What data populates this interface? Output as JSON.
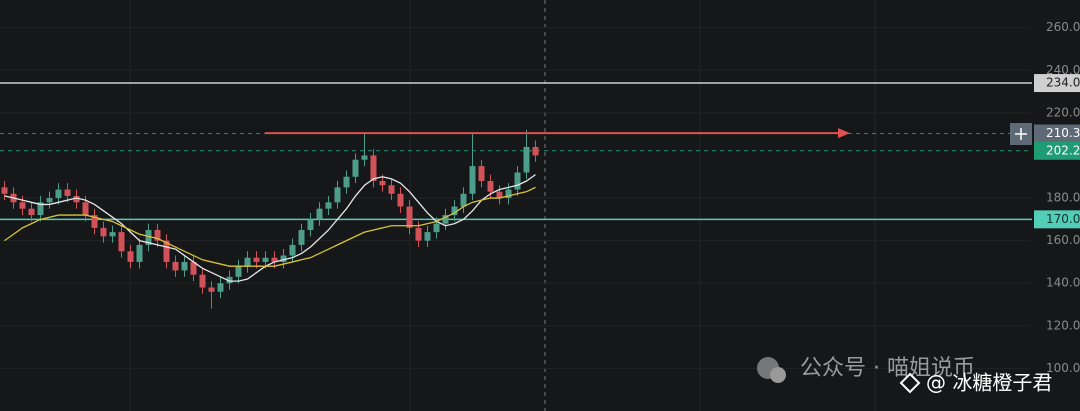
{
  "chart_data": {
    "type": "candlestick",
    "open": [
      185,
      182,
      178,
      175,
      172,
      178,
      180,
      184,
      181,
      178,
      172,
      166,
      162,
      164,
      155,
      150,
      158,
      165,
      160,
      150,
      146,
      150,
      144,
      138,
      136,
      140,
      143,
      148,
      152,
      150,
      152,
      150,
      153,
      158,
      165,
      170,
      175,
      178,
      185,
      190,
      198,
      200,
      188,
      186,
      182,
      176,
      166,
      160,
      164,
      168,
      172,
      176,
      182,
      195,
      188,
      183,
      180,
      184,
      192,
      204
    ],
    "high": [
      188,
      185,
      181,
      178,
      181,
      183,
      187,
      187,
      184,
      181,
      175,
      169,
      167,
      167,
      158,
      161,
      168,
      168,
      163,
      153,
      153,
      153,
      147,
      141,
      143,
      146,
      151,
      155,
      155,
      155,
      155,
      156,
      161,
      168,
      173,
      178,
      181,
      188,
      193,
      201,
      210,
      203,
      191,
      189,
      185,
      179,
      169,
      167,
      171,
      175,
      179,
      185,
      210,
      198,
      191,
      186,
      187,
      195,
      212,
      207
    ],
    "low": [
      179,
      175,
      172,
      169,
      169,
      175,
      177,
      178,
      175,
      169,
      163,
      159,
      159,
      152,
      147,
      147,
      155,
      157,
      147,
      143,
      143,
      141,
      135,
      128,
      133,
      137,
      140,
      145,
      147,
      147,
      147,
      147,
      150,
      155,
      162,
      167,
      172,
      175,
      182,
      187,
      195,
      185,
      183,
      179,
      173,
      163,
      157,
      157,
      161,
      165,
      169,
      173,
      179,
      185,
      180,
      177,
      177,
      181,
      189,
      197
    ],
    "close": [
      182,
      178,
      175,
      172,
      178,
      180,
      184,
      181,
      178,
      172,
      166,
      162,
      164,
      155,
      150,
      158,
      165,
      160,
      150,
      146,
      150,
      144,
      138,
      136,
      140,
      143,
      148,
      152,
      150,
      152,
      150,
      153,
      158,
      165,
      170,
      175,
      178,
      185,
      190,
      198,
      200,
      188,
      186,
      182,
      176,
      166,
      160,
      164,
      168,
      172,
      176,
      182,
      195,
      188,
      183,
      180,
      184,
      192,
      204,
      200
    ],
    "up_color": "#4c9e8a",
    "down_color": "#d2525a",
    "series": [
      {
        "color": "#e6e6e6",
        "values": [
          181,
          180,
          179,
          178,
          177,
          177,
          178,
          179,
          180,
          179,
          177,
          174,
          171,
          168,
          164,
          160,
          159,
          158,
          157,
          156,
          153,
          150,
          147,
          145,
          143,
          141,
          141,
          142,
          145,
          148,
          150,
          151,
          152,
          154,
          157,
          161,
          165,
          170,
          175,
          181,
          186,
          189,
          190,
          189,
          187,
          183,
          178,
          173,
          169,
          167,
          168,
          170,
          174,
          179,
          182,
          184,
          185,
          186,
          188,
          191
        ]
      },
      {
        "color": "#d8c23a",
        "values": [
          160,
          163,
          166,
          168,
          170,
          171,
          172,
          172,
          172,
          172,
          171,
          170,
          169,
          167,
          165,
          163,
          162,
          161,
          159,
          157,
          155,
          153,
          151,
          150,
          149,
          148,
          148,
          148,
          148,
          148,
          148,
          149,
          150,
          151,
          152,
          154,
          156,
          158,
          160,
          162,
          164,
          165,
          166,
          167,
          167,
          167,
          167,
          168,
          169,
          171,
          173,
          176,
          178,
          179,
          180,
          180,
          181,
          182,
          183,
          185
        ]
      }
    ],
    "ylim": [
      80,
      273
    ],
    "yticks": [
      {
        "value": 260,
        "label": "260.0"
      },
      {
        "value": 240,
        "label": "240.0"
      },
      {
        "value": 220,
        "label": "220.0"
      },
      {
        "value": 180,
        "label": "180.0"
      },
      {
        "value": 160,
        "label": "160.0"
      },
      {
        "value": 140,
        "label": "140.0"
      },
      {
        "value": 120,
        "label": "120.0"
      },
      {
        "value": 100,
        "label": "100.0"
      }
    ],
    "price_lines": [
      {
        "value": 234,
        "label": "234.0",
        "color": "#cfcfcf",
        "text_color": "#222",
        "style": "solid"
      },
      {
        "value": 210.3,
        "label": "210.3",
        "color": "#5f6a77",
        "text_color": "#fff",
        "style": "dashed"
      },
      {
        "value": 202.2,
        "label": "202.2",
        "color": "#1f9c73",
        "text_color": "#fff",
        "style": "dashed"
      },
      {
        "value": 170,
        "label": "170.0",
        "color": "#52cdb6",
        "text_color": "#10332d",
        "style": "solid"
      }
    ],
    "arrow_level": 210.5,
    "arrow_color": "#e0504e"
  },
  "watermark": {
    "line1": "公众号 · 喵姐说币",
    "line2": "@ 冰糖橙子君"
  }
}
